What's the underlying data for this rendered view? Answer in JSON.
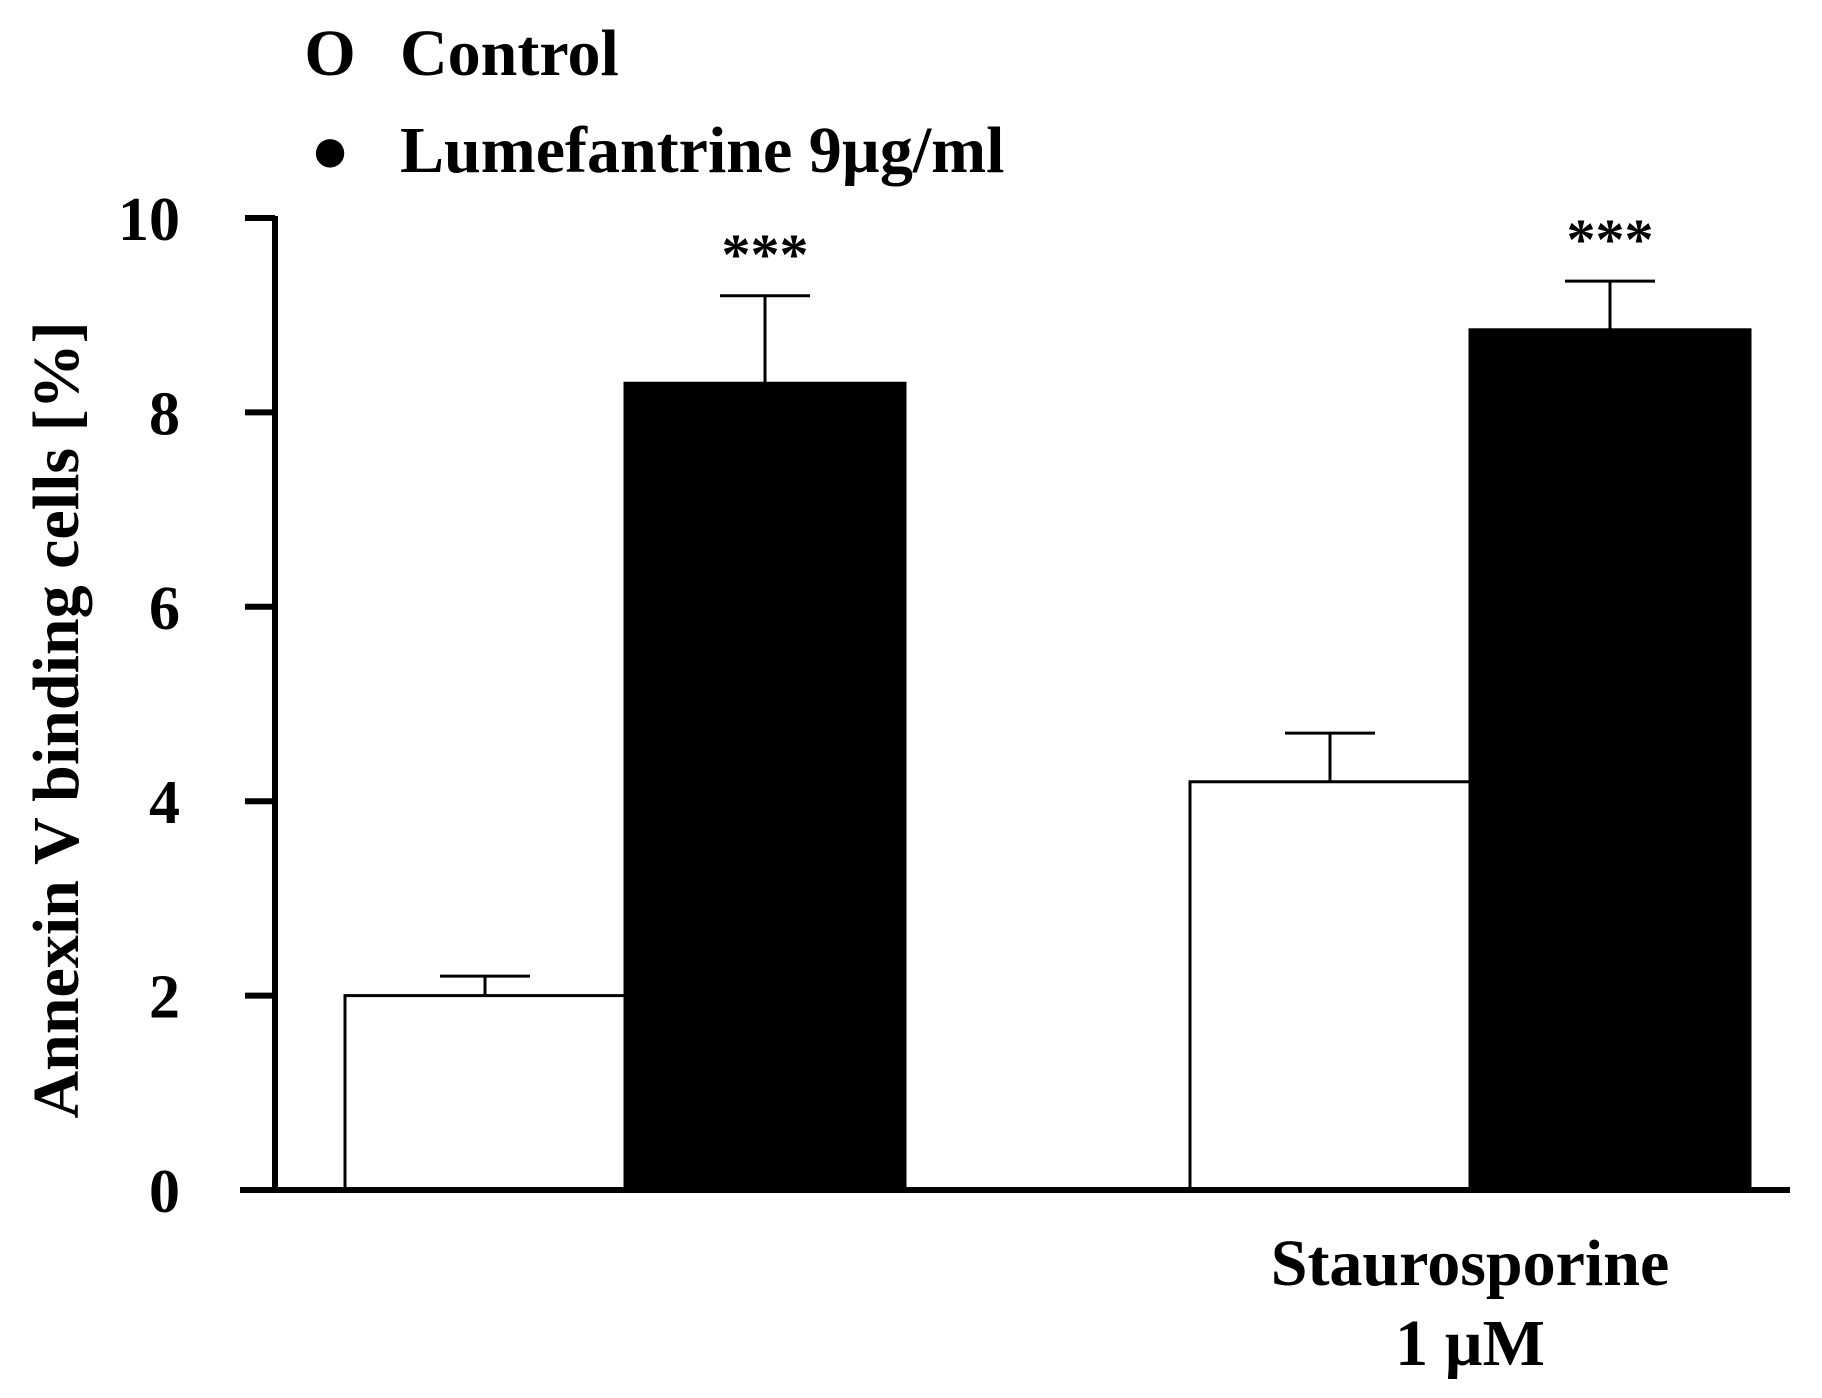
{
  "chart_data": {
    "type": "bar",
    "categories": [
      "",
      "Staurosporine 1 µM"
    ],
    "category_label_lines": [
      [],
      [
        "Staurosporine",
        "1 µM"
      ]
    ],
    "series": [
      {
        "name": "Control",
        "values": [
          2.0,
          4.2
        ],
        "errors": [
          0.2,
          0.5
        ],
        "color": "#ffffff"
      },
      {
        "name": "Lumefantrine 9µg/ml",
        "values": [
          8.3,
          8.85
        ],
        "errors": [
          0.9,
          0.5
        ],
        "color": "#000000"
      }
    ],
    "legend": {
      "placement": "top-left",
      "entries": [
        {
          "marker": "O",
          "label": "Control"
        },
        {
          "marker": "●",
          "label": "Lumefantrine 9µg/ml"
        }
      ]
    },
    "significance": [
      [
        "",
        "***"
      ],
      [
        "",
        "***"
      ]
    ],
    "ylabel": "Annexin V binding cells [%]",
    "xlabel": "",
    "ylim": [
      0,
      10
    ],
    "yticks": [
      "0",
      "2",
      "4",
      "6",
      "8",
      "10"
    ],
    "grid": false
  }
}
